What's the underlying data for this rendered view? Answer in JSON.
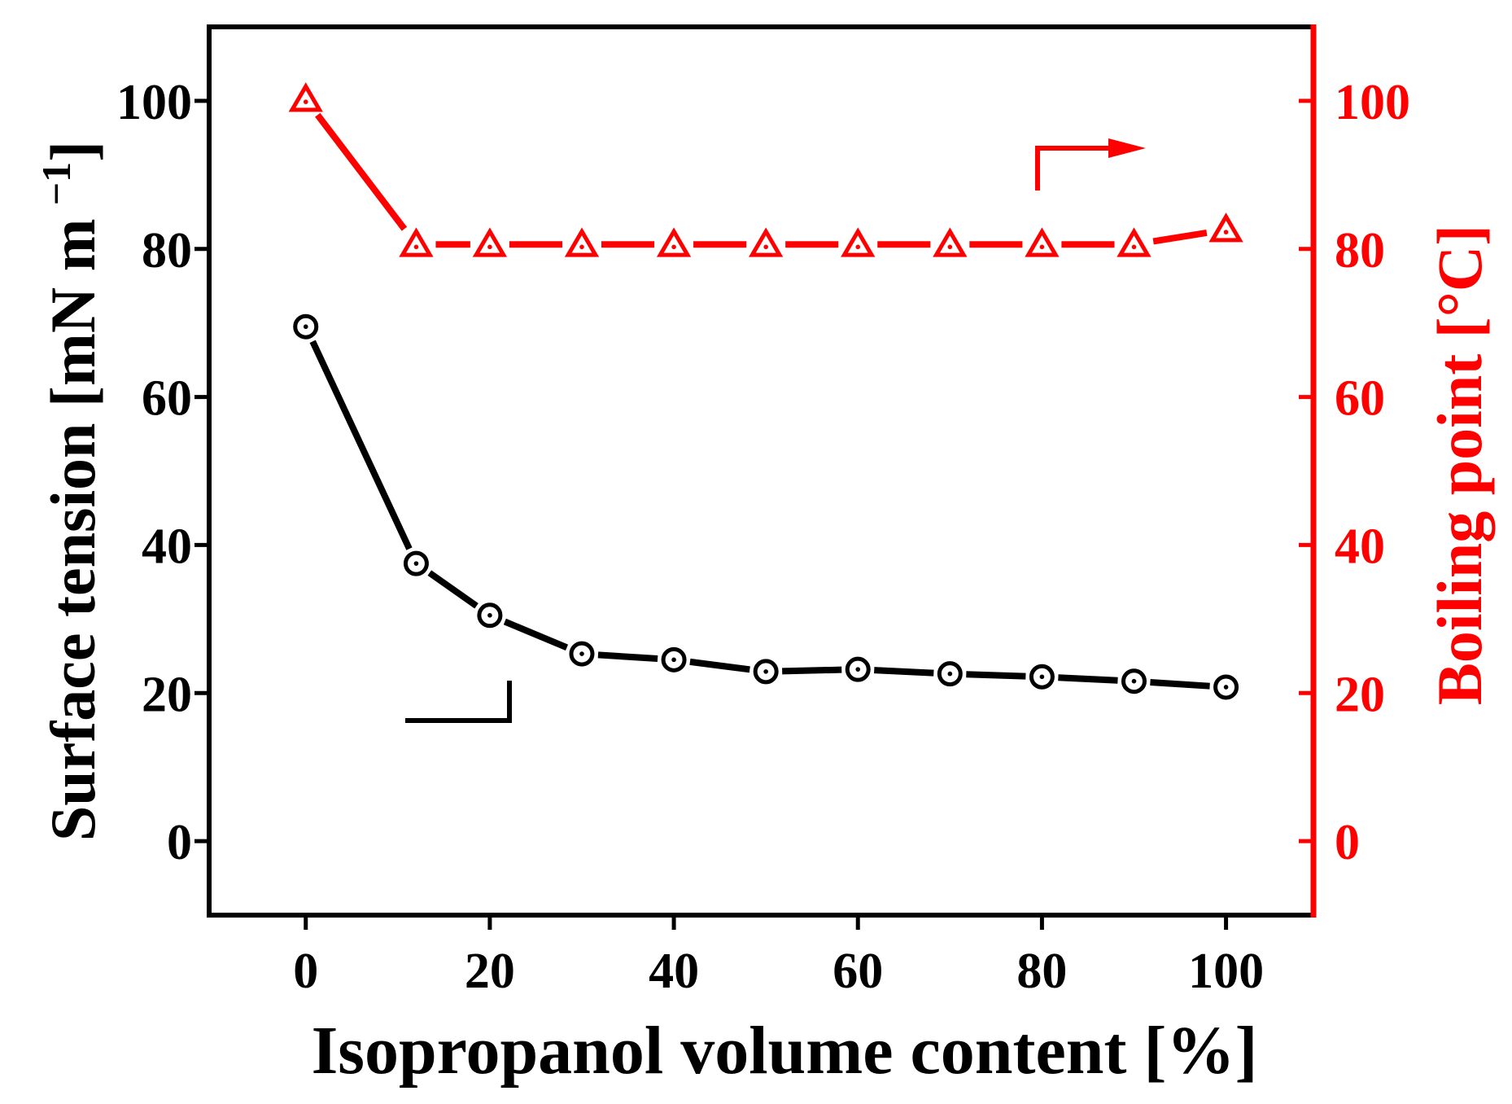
{
  "chart_data": {
    "type": "line",
    "title": "",
    "xlabel": "Isopropanol volume content [%]",
    "ylabel_left": "Surface tension [mN m",
    "ylabel_left_exponent": "−1",
    "ylabel_left_close": "]",
    "ylabel_right": "Boiling point [°C]",
    "xlim": [
      -10.5,
      109.5
    ],
    "ylim_left": [
      -10,
      110
    ],
    "ylim_right": [
      -10,
      110
    ],
    "x_ticks": [
      0,
      20,
      40,
      60,
      80,
      100
    ],
    "x_tick_labels": [
      "0",
      "20",
      "40",
      "60",
      "80",
      "100"
    ],
    "y_ticks": [
      0,
      20,
      40,
      60,
      80,
      100
    ],
    "y_tick_labels": [
      "0",
      "20",
      "40",
      "60",
      "80",
      "100"
    ],
    "grid": false,
    "series": [
      {
        "name": "Surface tension",
        "axis": "left",
        "color": "#000000",
        "marker": "circle-dot",
        "x": [
          0,
          12,
          20,
          30,
          40,
          50,
          60,
          70,
          80,
          90,
          100
        ],
        "values": [
          69.5,
          37.5,
          30.5,
          25.3,
          24.5,
          22.9,
          23.2,
          22.6,
          22.2,
          21.6,
          20.8
        ]
      },
      {
        "name": "Boiling point",
        "axis": "right",
        "color": "#ff0000",
        "marker": "triangle-dot",
        "x": [
          0,
          12,
          20,
          30,
          40,
          50,
          60,
          70,
          80,
          90,
          100
        ],
        "values": [
          100.2,
          80.6,
          80.6,
          80.6,
          80.6,
          80.6,
          80.6,
          80.6,
          80.6,
          80.6,
          82.6
        ]
      }
    ],
    "annotations": [
      {
        "name": "left-axis-arrow",
        "points_to": "left",
        "color": "#000000"
      },
      {
        "name": "right-axis-arrow",
        "points_to": "right",
        "color": "#ff0000"
      }
    ]
  }
}
